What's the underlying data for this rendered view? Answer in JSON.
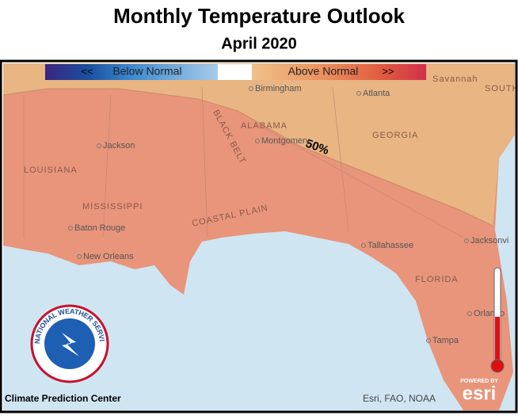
{
  "header": {
    "title": "Monthly Temperature Outlook",
    "subtitle": "April 2020"
  },
  "legend": {
    "below_arrows": "<<",
    "below": "Below Normal",
    "above": "Above Normal",
    "above_arrows": ">>"
  },
  "contour_label": "50%",
  "regions": [
    "BLACK BELT",
    "COASTAL PLAIN"
  ],
  "places": [
    "Birmingham",
    "Atlanta",
    "Savannah",
    "SOUTH CAROLI",
    "ALABAMA",
    "GEORGIA",
    "Montgomery",
    "Jackson",
    "LOUISIANA",
    "MISSISSIPPI",
    "Baton Rouge",
    "New Orleans",
    "Tallahassee",
    "Jacksonvi",
    "FLORIDA",
    "Orlando",
    "Tampa"
  ],
  "logo": {
    "text": "NATIONAL WEATHER SERVICE"
  },
  "credits": {
    "left": "Climate Prediction Center",
    "right": "Esri, FAO, NOAA",
    "powered": "POWERED BY",
    "esri": "esri"
  }
}
